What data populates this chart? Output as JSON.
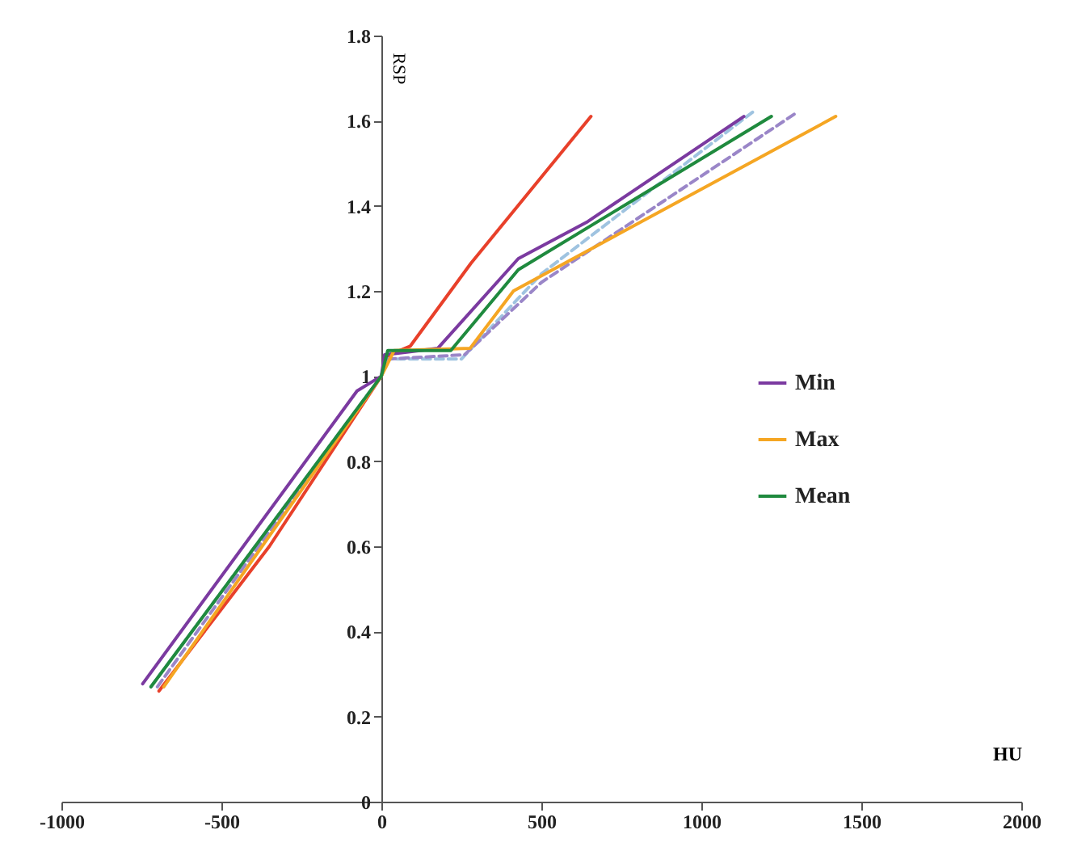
{
  "chart_data": {
    "type": "line",
    "xlabel": "HU",
    "ylabel": "RSP",
    "xlim": [
      -1000,
      2000
    ],
    "ylim": [
      0,
      1.8
    ],
    "xticks": [
      -1000,
      -500,
      0,
      500,
      1000,
      1500,
      2000
    ],
    "yticks": [
      0,
      0.2,
      0.4,
      0.6,
      0.8,
      1,
      1.2,
      1.4,
      1.6,
      1.8
    ],
    "grid": false,
    "legend": "right",
    "series": [
      {
        "color": "#e8402a",
        "line_style": "solid",
        "x": [
          -695,
          -350,
          0,
          25,
          90,
          280,
          655
        ],
        "values": [
          0.26,
          0.6,
          1.0,
          1.05,
          1.07,
          1.265,
          1.61
        ]
      },
      {
        "color": "#9fc3e0",
        "line_style": "dashed",
        "x": [
          -720,
          0,
          20,
          250,
          500,
          1160
        ],
        "values": [
          0.27,
          1.0,
          1.04,
          1.04,
          1.24,
          1.62
        ]
      },
      {
        "color": "#9a86c8",
        "line_style": "dashed",
        "x": [
          -700,
          0,
          20,
          260,
          500,
          1300
        ],
        "values": [
          0.27,
          1.0,
          1.04,
          1.05,
          1.22,
          1.62
        ]
      },
      {
        "name": "Min",
        "color": "#7b3aa0",
        "line_style": "solid",
        "x": [
          -746,
          -76,
          0,
          10,
          176,
          428,
          645,
          1133
        ],
        "values": [
          0.277,
          0.965,
          1.0,
          1.05,
          1.065,
          1.276,
          1.363,
          1.61
        ]
      },
      {
        "name": "Max",
        "color": "#f5a623",
        "line_style": "solid",
        "x": [
          -680,
          0,
          40,
          277,
          413,
          1420
        ],
        "values": [
          0.27,
          1.0,
          1.06,
          1.065,
          1.2,
          1.61
        ]
      },
      {
        "name": "Mean",
        "color": "#1f8a3e",
        "line_style": "solid",
        "x": [
          -720,
          0,
          20,
          217,
          428,
          1219
        ],
        "values": [
          0.27,
          1.0,
          1.06,
          1.06,
          1.25,
          1.61
        ]
      }
    ]
  }
}
